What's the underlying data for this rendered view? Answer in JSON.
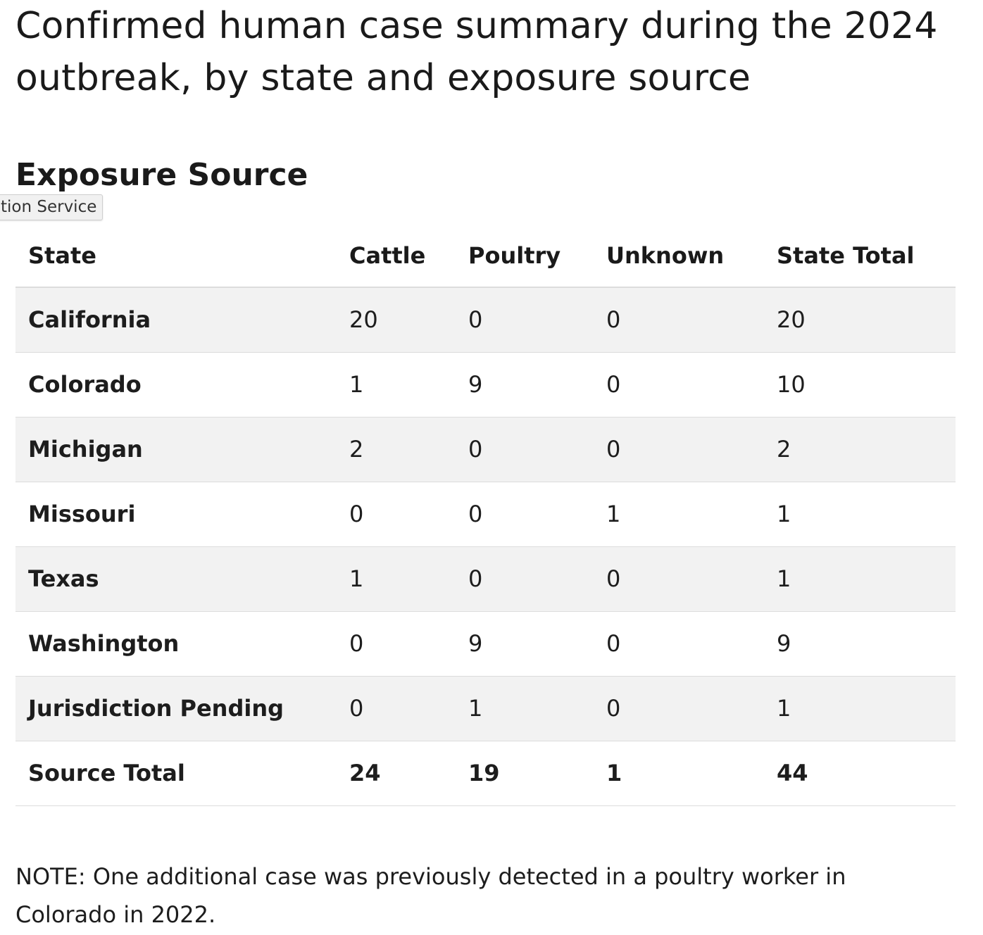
{
  "page": {
    "title": "Confirmed human case summary during the 2024 outbreak, by state and exposure source",
    "section_heading": "Exposure Source",
    "tooltip": "tion Service"
  },
  "table": {
    "headers": {
      "state": "State",
      "cattle": "Cattle",
      "poultry": "Poultry",
      "unknown": "Unknown",
      "total": "State Total"
    },
    "rows": [
      {
        "state": "California",
        "cattle": "20",
        "poultry": "0",
        "unknown": "0",
        "total": "20"
      },
      {
        "state": "Colorado",
        "cattle": "1",
        "poultry": "9",
        "unknown": "0",
        "total": "10"
      },
      {
        "state": "Michigan",
        "cattle": "2",
        "poultry": "0",
        "unknown": "0",
        "total": "2"
      },
      {
        "state": "Missouri",
        "cattle": "0",
        "poultry": "0",
        "unknown": "1",
        "total": "1"
      },
      {
        "state": "Texas",
        "cattle": "1",
        "poultry": "0",
        "unknown": "0",
        "total": "1"
      },
      {
        "state": "Washington",
        "cattle": "0",
        "poultry": "9",
        "unknown": "0",
        "total": "9"
      },
      {
        "state": "Jurisdiction Pending",
        "cattle": "0",
        "poultry": "1",
        "unknown": "0",
        "total": "1"
      }
    ],
    "footer": {
      "state": "Source Total",
      "cattle": "24",
      "poultry": "19",
      "unknown": "1",
      "total": "44"
    }
  },
  "note": "NOTE: One additional case was previously detected in a poultry worker in Colorado in 2022.",
  "colors": {
    "stripe": "#f2f2f2",
    "border": "#dcdcdc",
    "text": "#1d1d1d"
  }
}
